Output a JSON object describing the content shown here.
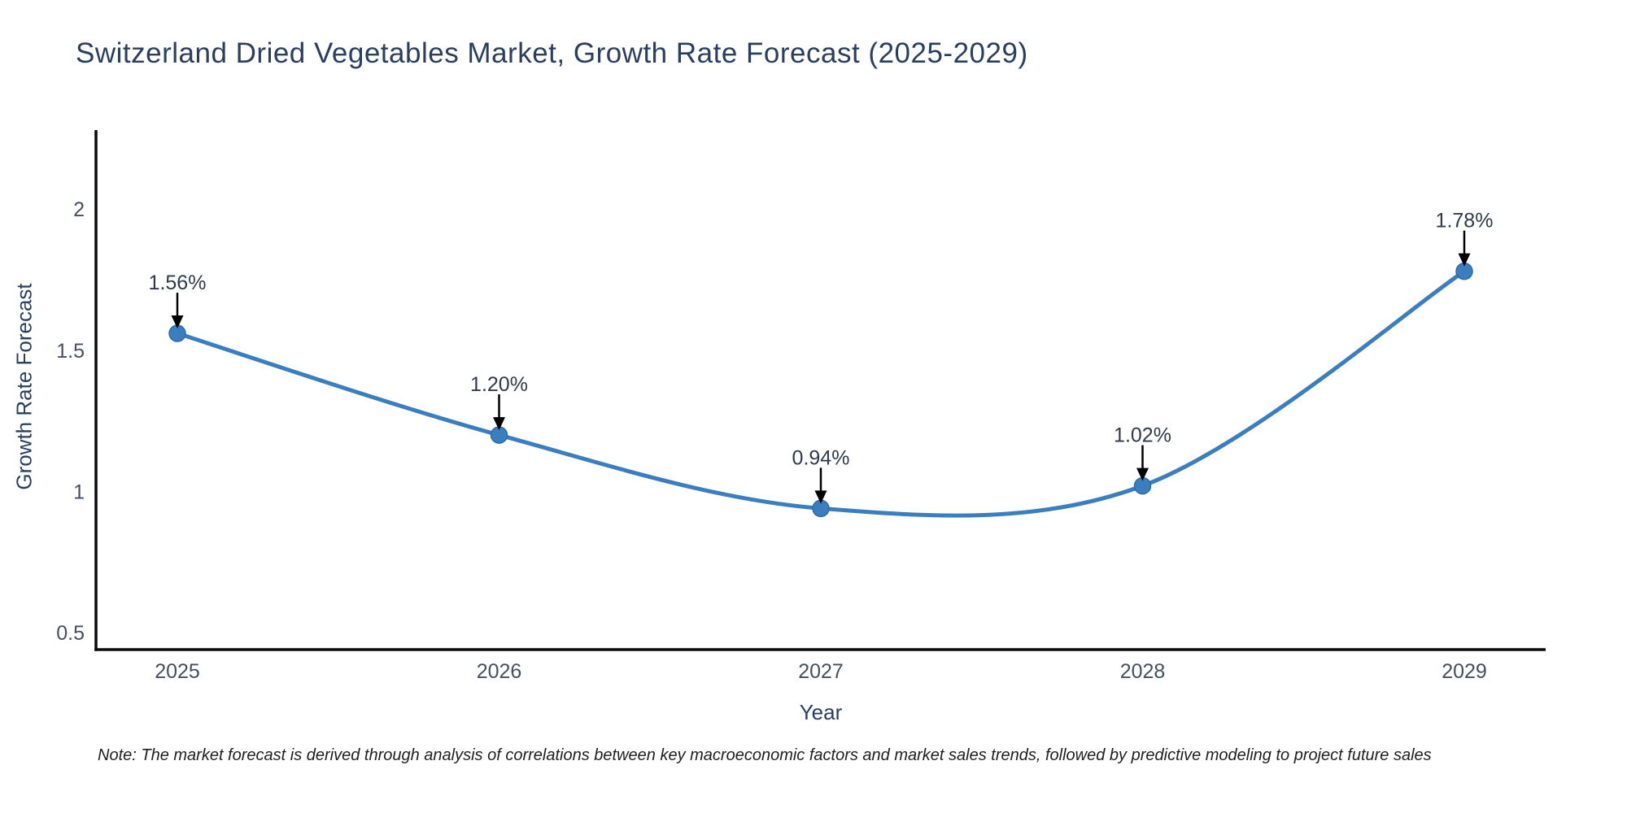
{
  "title": "Switzerland Dried Vegetables Market, Growth Rate Forecast (2025-2029)",
  "note": "Note: The market forecast is derived through analysis of correlations between key macroeconomic factors and market sales trends, followed by predictive modeling to project future sales",
  "chart_data": {
    "type": "line",
    "line_shape": "spline",
    "title": "Switzerland Dried Vegetables Market, Growth Rate Forecast (2025-2029)",
    "xlabel": "Year",
    "ylabel": "Growth Rate Forecast",
    "categories": [
      "2025",
      "2026",
      "2027",
      "2028",
      "2029"
    ],
    "series": [
      {
        "name": "Growth Rate Forecast",
        "values": [
          1.56,
          1.2,
          0.94,
          1.02,
          1.78
        ]
      }
    ],
    "point_labels": [
      "1.56%",
      "1.20%",
      "0.94%",
      "1.02%",
      "1.78%"
    ],
    "yticks": [
      0.5,
      1,
      1.5,
      2
    ],
    "ytick_labels": [
      "0.5",
      "1",
      "1.5",
      "2"
    ],
    "ylim": [
      0.44,
      2.28
    ],
    "grid": false,
    "legend_position": "none",
    "colors": {
      "line": "#3a7ebf",
      "marker": "#3a7ebf",
      "marker_edge": "#2e6ca4",
      "axis": "#0a0a0a",
      "tick_label": "#445060",
      "annotation_text": "#2f3a4a",
      "annotation_arrow": "#000000",
      "title_text": "#2a3f5f",
      "background": "#ffffff"
    }
  }
}
